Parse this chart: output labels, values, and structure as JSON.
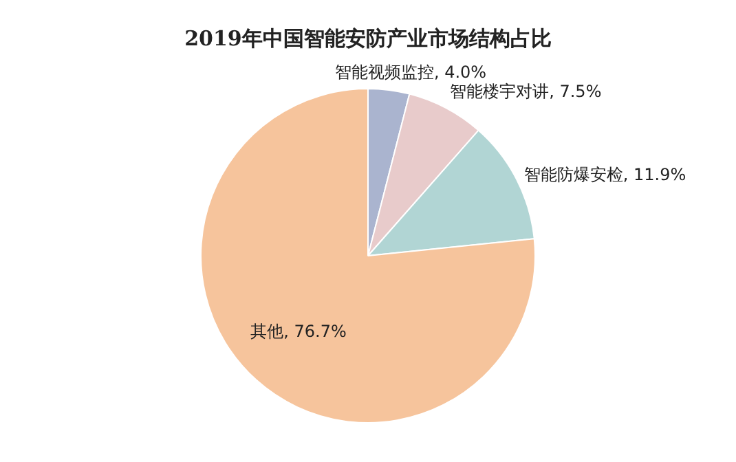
{
  "chart_data": {
    "type": "pie",
    "title": "2019年中国智能安防产业市场结构占比",
    "categories": [
      "智能视频监控",
      "智能楼宇对讲",
      "智能防爆安检",
      "其他"
    ],
    "values": [
      4.0,
      7.5,
      11.9,
      76.7
    ],
    "value_labels": [
      "4.0%",
      "7.5%",
      "11.9%",
      "76.7%"
    ],
    "colors": [
      "#aab4cf",
      "#e8cbcb",
      "#b1d5d4",
      "#f6c49c"
    ],
    "legend": false
  }
}
